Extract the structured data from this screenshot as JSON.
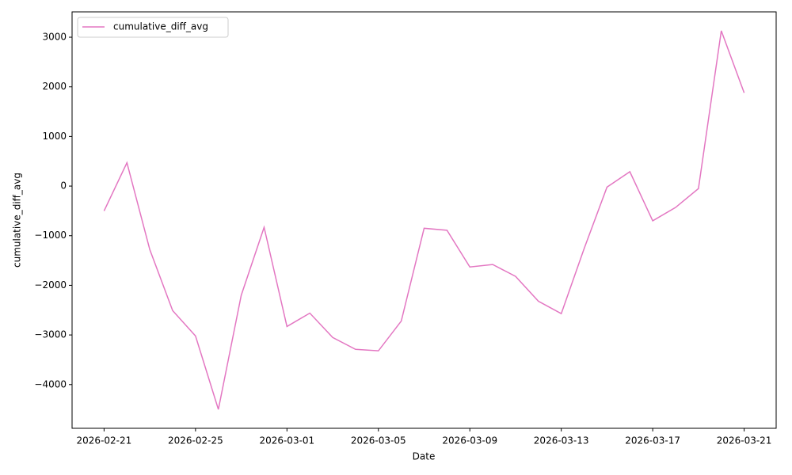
{
  "chart_data": {
    "type": "line",
    "x": [
      "2026-02-21",
      "2026-02-22",
      "2026-02-23",
      "2026-02-24",
      "2026-02-25",
      "2026-02-26",
      "2026-02-27",
      "2026-02-28",
      "2026-03-01",
      "2026-03-02",
      "2026-03-03",
      "2026-03-04",
      "2026-03-05",
      "2026-03-06",
      "2026-03-07",
      "2026-03-08",
      "2026-03-09",
      "2026-03-10",
      "2026-03-11",
      "2026-03-12",
      "2026-03-13",
      "2026-03-14",
      "2026-03-15",
      "2026-03-16",
      "2026-03-17",
      "2026-03-18",
      "2026-03-19",
      "2026-03-20",
      "2026-03-21"
    ],
    "series": [
      {
        "name": "cumulative_diff_avg",
        "color": "#e377c2",
        "values": [
          -500,
          470,
          -1280,
          -2510,
          -3020,
          -4500,
          -2200,
          -830,
          -2830,
          -2560,
          -3050,
          -3290,
          -3320,
          -2720,
          -850,
          -890,
          -1630,
          -1580,
          -1820,
          -2320,
          -2570,
          -1260,
          -20,
          290,
          -700,
          -430,
          -50,
          3130,
          1880
        ]
      }
    ],
    "x_label": "Date",
    "y_label": "cumulative_diff_avg",
    "xlim": [
      "2026-02-19T14:24:00Z",
      "2026-03-22T09:36:00Z"
    ],
    "xticks": [
      "2026-02-21",
      "2026-02-25",
      "2026-03-01",
      "2026-03-05",
      "2026-03-09",
      "2026-03-13",
      "2026-03-17",
      "2026-03-21"
    ],
    "ylim": [
      -4881,
      3511
    ],
    "yticks": [
      {
        "value": -4000,
        "label": "−4000"
      },
      {
        "value": -3000,
        "label": "−3000"
      },
      {
        "value": -2000,
        "label": "−2000"
      },
      {
        "value": -1000,
        "label": "−1000"
      },
      0,
      1000,
      2000,
      3000
    ],
    "grid": false,
    "legend": "upper left"
  }
}
